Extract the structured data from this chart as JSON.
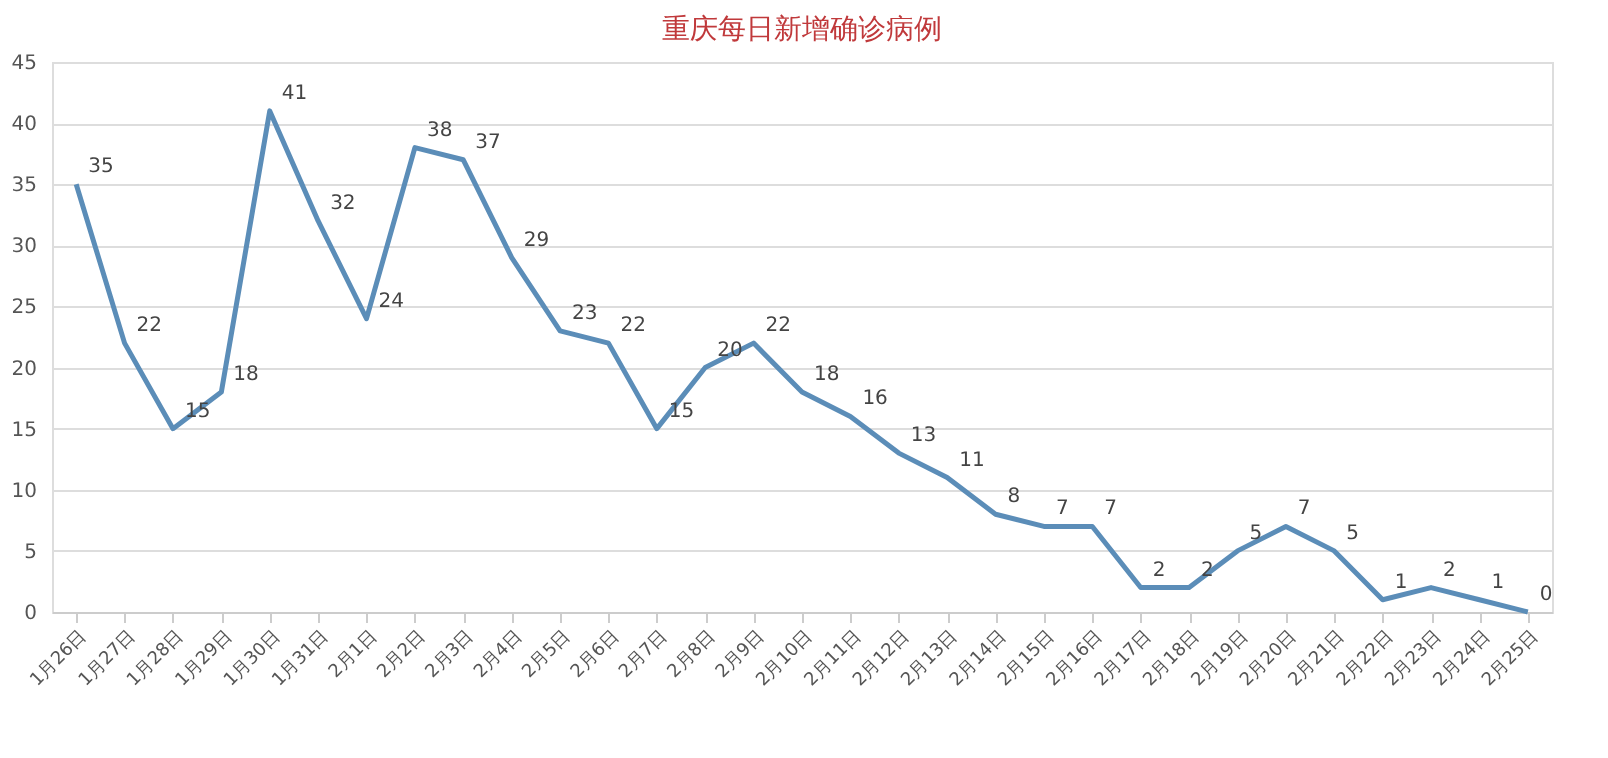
{
  "chart_data": {
    "type": "line",
    "title": "重庆每日新增确诊病例",
    "categories": [
      "1月26日",
      "1月27日",
      "1月28日",
      "1月29日",
      "1月30日",
      "1月31日",
      "2月1日",
      "2月2日",
      "2月3日",
      "2月4日",
      "2月5日",
      "2月6日",
      "2月7日",
      "2月8日",
      "2月9日",
      "2月10日",
      "2月11日",
      "2月12日",
      "2月13日",
      "2月14日",
      "2月15日",
      "2月16日",
      "2月17日",
      "2月18日",
      "2月19日",
      "2月20日",
      "2月21日",
      "2月22日",
      "2月23日",
      "2月24日",
      "2月25日"
    ],
    "series": [
      {
        "color": "#5b8db8",
        "values": [
          35,
          22,
          15,
          18,
          41,
          32,
          24,
          38,
          37,
          29,
          23,
          22,
          15,
          20,
          22,
          18,
          16,
          13,
          11,
          8,
          7,
          7,
          2,
          2,
          5,
          7,
          5,
          1,
          2,
          1,
          0
        ]
      }
    ],
    "ylim": [
      0,
      45
    ],
    "yticks": [
      0,
      5,
      10,
      15,
      20,
      25,
      30,
      35,
      40,
      45
    ],
    "grid": "y",
    "data_labels": true,
    "marker": "none",
    "line_style": "solid"
  }
}
